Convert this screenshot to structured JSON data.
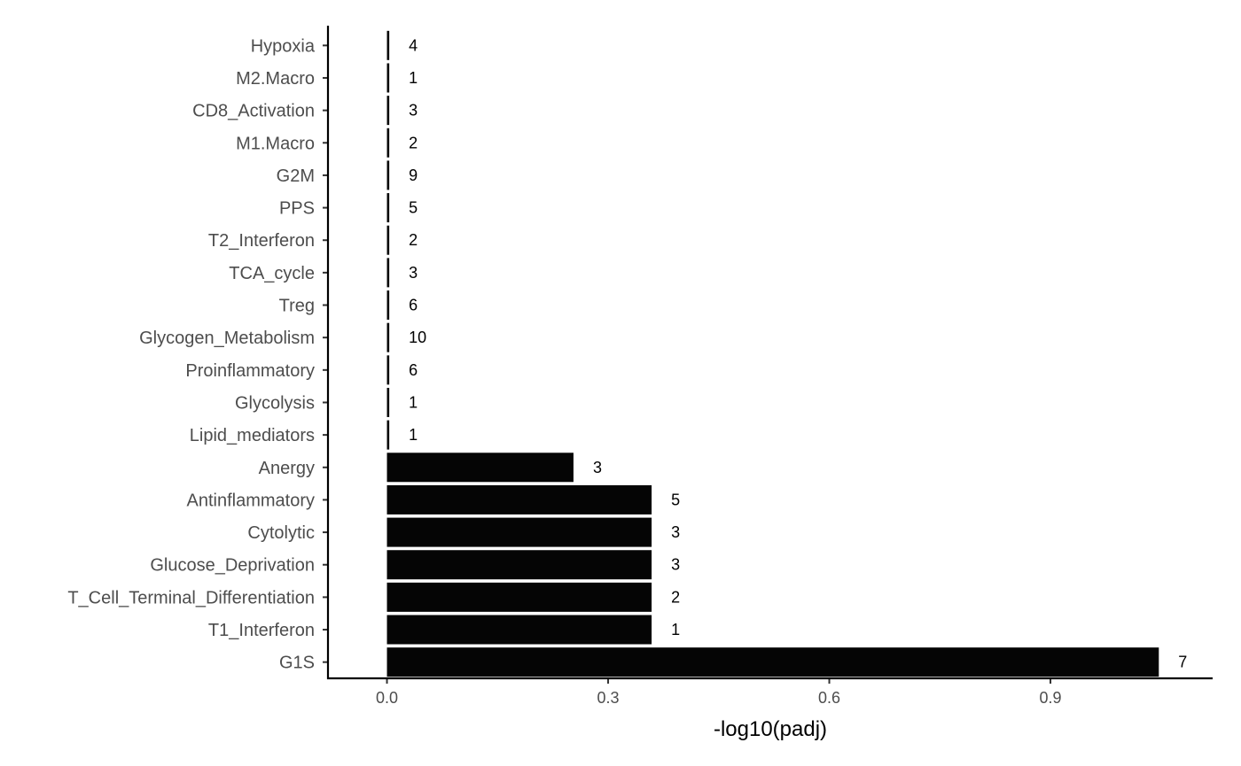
{
  "chart_data": {
    "type": "bar",
    "orientation": "horizontal",
    "title": "",
    "xlabel": "-log10(padj)",
    "ylabel": "",
    "xlim": [
      -0.08,
      1.12
    ],
    "xticks": [
      0.0,
      0.3,
      0.6,
      0.9
    ],
    "xtick_labels": [
      "0.0",
      "0.3",
      "0.6",
      "0.9"
    ],
    "grid": false,
    "legend": "none",
    "bar_color": "#050505",
    "categories": [
      "Hypoxia",
      "M2.Macro",
      "CD8_Activation",
      "M1.Macro",
      "G2M",
      "PPS",
      "T2_Interferon",
      "TCA_cycle",
      "Treg",
      "Glycogen_Metabolism",
      "Proinflammatory",
      "Glycolysis",
      "Lipid_mediators",
      "Anergy",
      "Antinflammatory",
      "Cytolytic",
      "Glucose_Deprivation",
      "T_Cell_Terminal_Differentiation",
      "T1_Interferon",
      "G1S"
    ],
    "values": [
      0.0,
      0.0,
      0.0,
      0.0,
      0.0,
      0.0,
      0.0,
      0.0,
      0.0,
      0.0,
      0.0,
      0.0,
      0.0,
      0.253,
      0.359,
      0.359,
      0.359,
      0.359,
      0.359,
      1.047
    ],
    "data_labels": [
      "4",
      "1",
      "3",
      "2",
      "9",
      "5",
      "2",
      "3",
      "6",
      "10",
      "6",
      "1",
      "1",
      "3",
      "5",
      "3",
      "3",
      "2",
      "1",
      "7"
    ]
  }
}
